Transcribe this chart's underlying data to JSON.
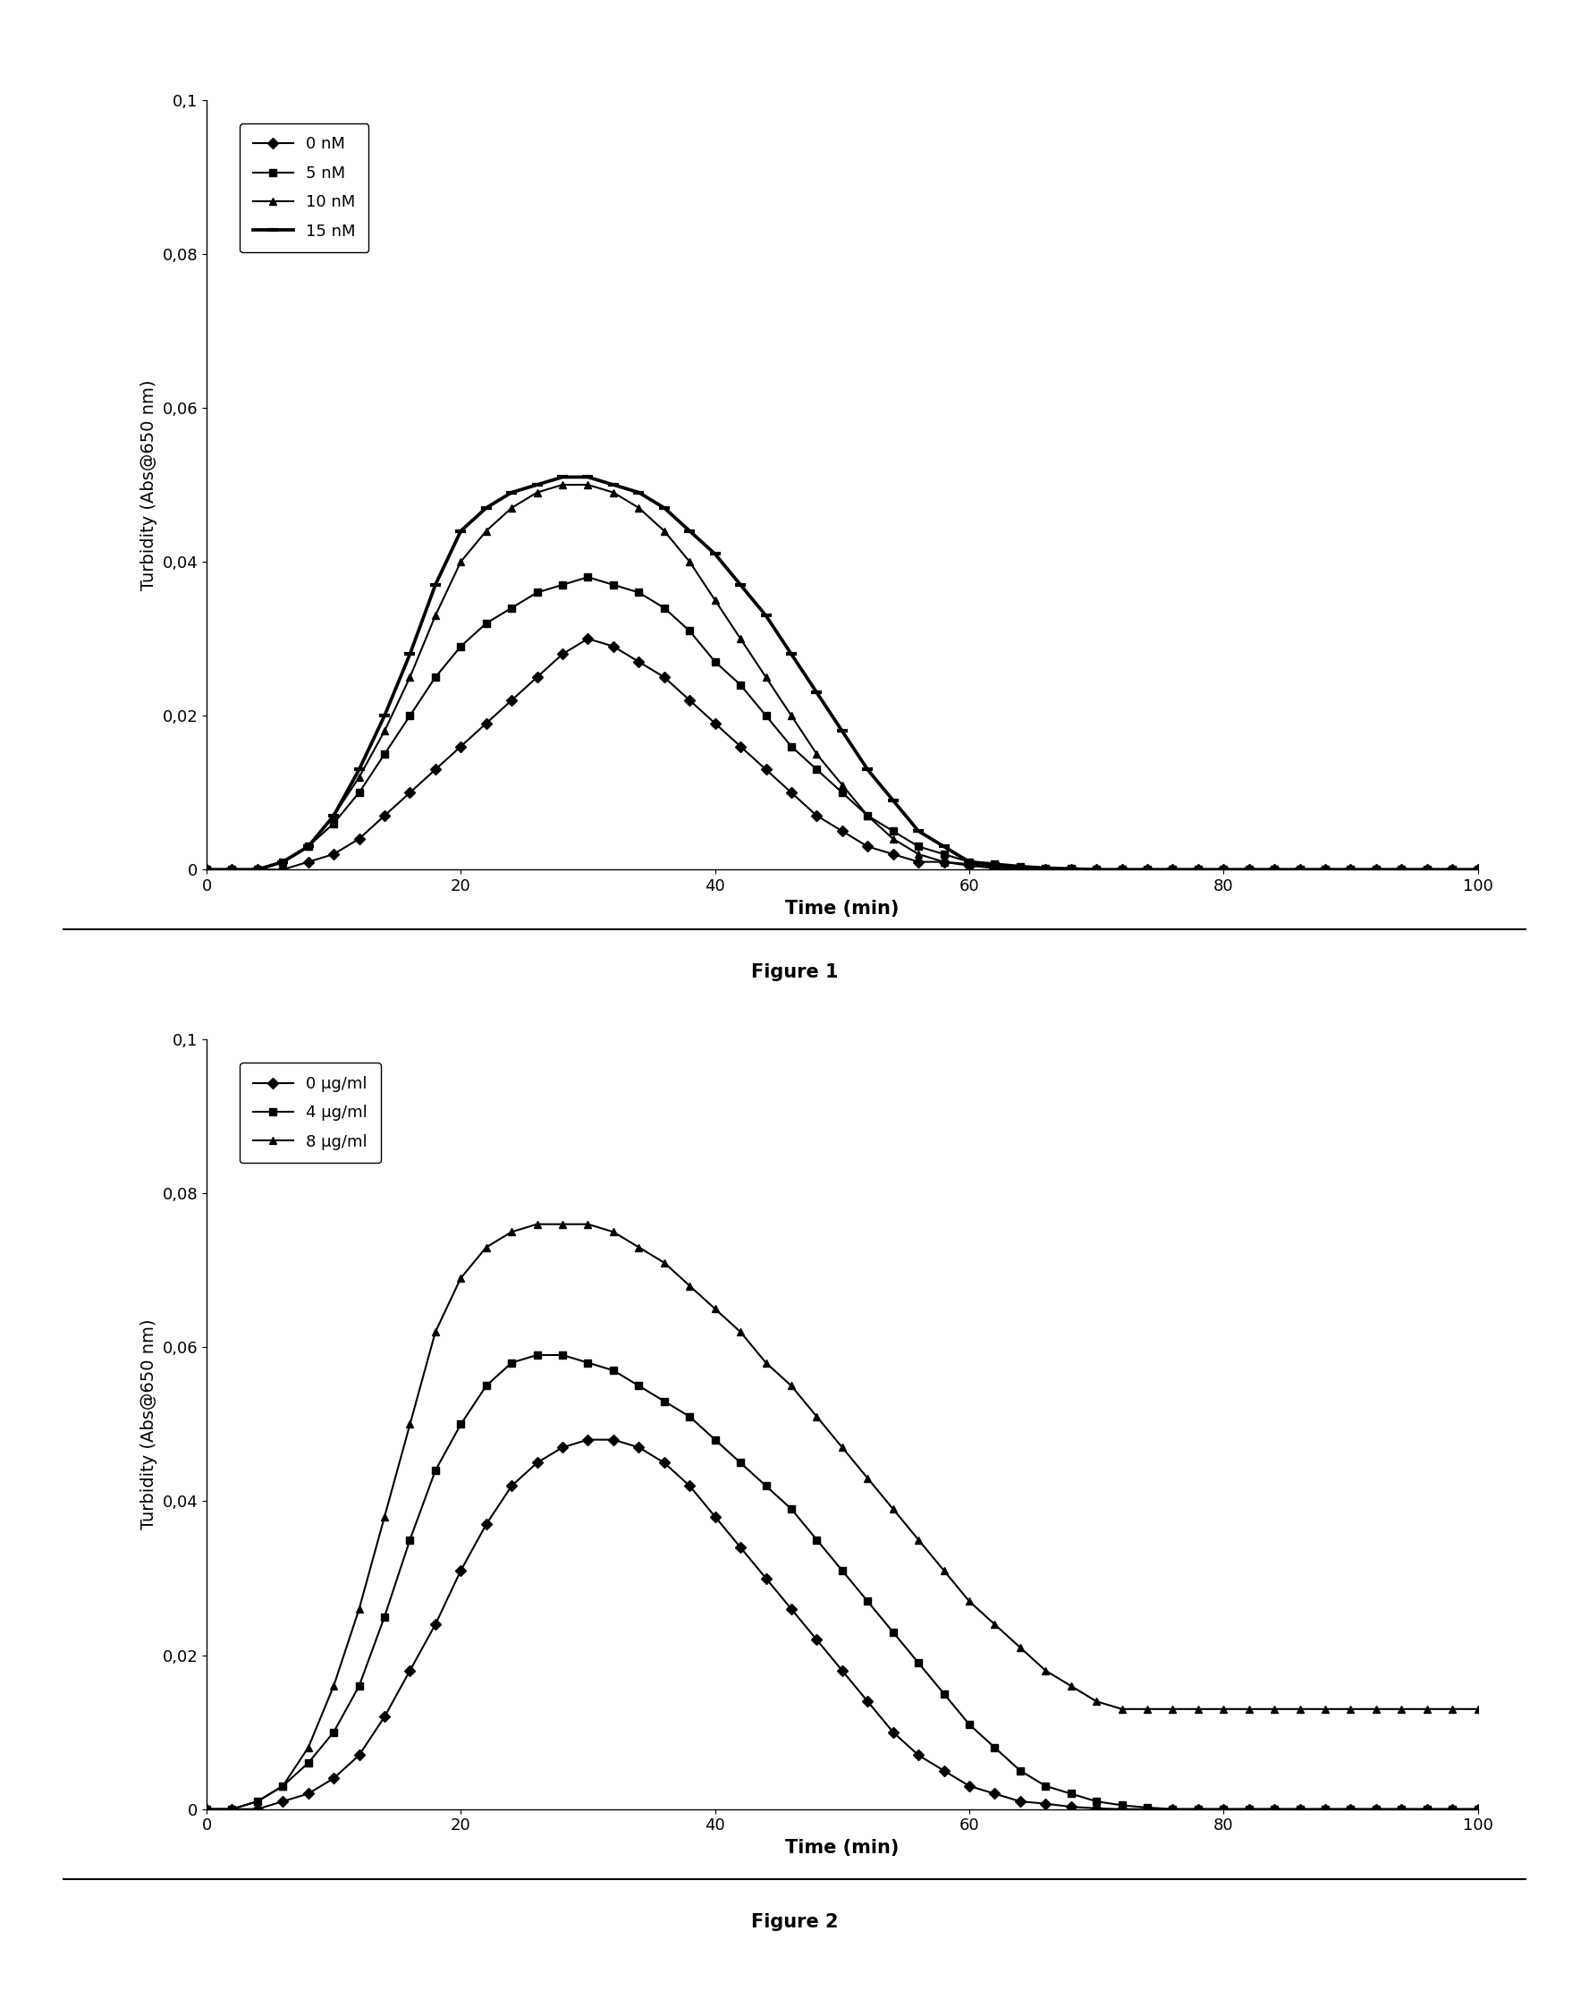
{
  "fig1": {
    "title": "Figure 1",
    "ylabel": "Turbidity (Abs@650 nm)",
    "xlabel": "Time (min)",
    "xlim": [
      0,
      100
    ],
    "ylim": [
      0,
      0.1
    ],
    "yticks": [
      0,
      0.02,
      0.04,
      0.06,
      0.08,
      0.1
    ],
    "ytick_labels": [
      "0",
      "0,02",
      "0,04",
      "0,06",
      "0,08",
      "0,1"
    ],
    "xticks": [
      0,
      20,
      40,
      60,
      80,
      100
    ],
    "series": [
      {
        "label": "0 nM",
        "marker": "D",
        "x": [
          0,
          2,
          4,
          6,
          8,
          10,
          12,
          14,
          16,
          18,
          20,
          22,
          24,
          26,
          28,
          30,
          32,
          34,
          36,
          38,
          40,
          42,
          44,
          46,
          48,
          50,
          52,
          54,
          56,
          58,
          60,
          62,
          64,
          66,
          68,
          70,
          72,
          74,
          76,
          78,
          80,
          82,
          84,
          86,
          88,
          90,
          92,
          94,
          96,
          98,
          100
        ],
        "y": [
          0,
          0,
          0,
          0,
          0.001,
          0.002,
          0.004,
          0.007,
          0.01,
          0.013,
          0.016,
          0.019,
          0.022,
          0.025,
          0.028,
          0.03,
          0.029,
          0.027,
          0.025,
          0.022,
          0.019,
          0.016,
          0.013,
          0.01,
          0.007,
          0.005,
          0.003,
          0.002,
          0.001,
          0.001,
          0.0005,
          0.0002,
          0.0001,
          0,
          0,
          0,
          0,
          0,
          0,
          0,
          0,
          0,
          0,
          0,
          0,
          0,
          0,
          0,
          0,
          0,
          0
        ]
      },
      {
        "label": "5 nM",
        "marker": "s",
        "x": [
          0,
          2,
          4,
          6,
          8,
          10,
          12,
          14,
          16,
          18,
          20,
          22,
          24,
          26,
          28,
          30,
          32,
          34,
          36,
          38,
          40,
          42,
          44,
          46,
          48,
          50,
          52,
          54,
          56,
          58,
          60,
          62,
          64,
          66,
          68,
          70,
          72,
          74,
          76,
          78,
          80,
          82,
          84,
          86,
          88,
          90,
          92,
          94,
          96,
          98,
          100
        ],
        "y": [
          0,
          0,
          0,
          0.001,
          0.003,
          0.006,
          0.01,
          0.015,
          0.02,
          0.025,
          0.029,
          0.032,
          0.034,
          0.036,
          0.037,
          0.038,
          0.037,
          0.036,
          0.034,
          0.031,
          0.027,
          0.024,
          0.02,
          0.016,
          0.013,
          0.01,
          0.007,
          0.005,
          0.003,
          0.002,
          0.001,
          0.0007,
          0.0004,
          0.0002,
          0.0001,
          0,
          0,
          0,
          0,
          0,
          0,
          0,
          0,
          0,
          0,
          0,
          0,
          0,
          0,
          0,
          0
        ]
      },
      {
        "label": "10 nM",
        "marker": "^",
        "x": [
          0,
          2,
          4,
          6,
          8,
          10,
          12,
          14,
          16,
          18,
          20,
          22,
          24,
          26,
          28,
          30,
          32,
          34,
          36,
          38,
          40,
          42,
          44,
          46,
          48,
          50,
          52,
          54,
          56,
          58,
          60,
          62,
          64,
          66,
          68,
          70,
          72,
          74,
          76,
          78,
          80,
          82,
          84,
          86,
          88,
          90,
          92,
          94,
          96,
          98,
          100
        ],
        "y": [
          0,
          0,
          0,
          0.001,
          0.003,
          0.007,
          0.012,
          0.018,
          0.025,
          0.033,
          0.04,
          0.044,
          0.047,
          0.049,
          0.05,
          0.05,
          0.049,
          0.047,
          0.044,
          0.04,
          0.035,
          0.03,
          0.025,
          0.02,
          0.015,
          0.011,
          0.007,
          0.004,
          0.002,
          0.001,
          0.0007,
          0.0004,
          0.0002,
          0.0001,
          0,
          0,
          0,
          0,
          0,
          0,
          0,
          0,
          0,
          0,
          0,
          0,
          0,
          0,
          0,
          0,
          0
        ]
      },
      {
        "label": "15 nM",
        "marker": "_",
        "x": [
          0,
          2,
          4,
          6,
          8,
          10,
          12,
          14,
          16,
          18,
          20,
          22,
          24,
          26,
          28,
          30,
          32,
          34,
          36,
          38,
          40,
          42,
          44,
          46,
          48,
          50,
          52,
          54,
          56,
          58,
          60,
          62,
          64,
          66,
          68,
          70,
          72,
          74,
          76,
          78,
          80,
          82,
          84,
          86,
          88,
          90,
          92,
          94,
          96,
          98,
          100
        ],
        "y": [
          0,
          0,
          0,
          0.001,
          0.003,
          0.007,
          0.013,
          0.02,
          0.028,
          0.037,
          0.044,
          0.047,
          0.049,
          0.05,
          0.051,
          0.051,
          0.05,
          0.049,
          0.047,
          0.044,
          0.041,
          0.037,
          0.033,
          0.028,
          0.023,
          0.018,
          0.013,
          0.009,
          0.005,
          0.003,
          0.001,
          0.0007,
          0.0004,
          0.0002,
          0.0001,
          0,
          0,
          0,
          0,
          0,
          0,
          0,
          0,
          0,
          0,
          0,
          0,
          0,
          0,
          0,
          0
        ]
      }
    ]
  },
  "fig2": {
    "title": "Figure 2",
    "ylabel": "Turbidity (Abs@650 nm)",
    "xlabel": "Time (min)",
    "xlim": [
      0,
      100
    ],
    "ylim": [
      0,
      0.1
    ],
    "yticks": [
      0,
      0.02,
      0.04,
      0.06,
      0.08,
      0.1
    ],
    "ytick_labels": [
      "0",
      "0,02",
      "0,04",
      "0,06",
      "0,08",
      "0,1"
    ],
    "xticks": [
      0,
      20,
      40,
      60,
      80,
      100
    ],
    "series": [
      {
        "label": "0 μg/ml",
        "marker": "D",
        "x": [
          0,
          2,
          4,
          6,
          8,
          10,
          12,
          14,
          16,
          18,
          20,
          22,
          24,
          26,
          28,
          30,
          32,
          34,
          36,
          38,
          40,
          42,
          44,
          46,
          48,
          50,
          52,
          54,
          56,
          58,
          60,
          62,
          64,
          66,
          68,
          70,
          72,
          74,
          76,
          78,
          80,
          82,
          84,
          86,
          88,
          90,
          92,
          94,
          96,
          98,
          100
        ],
        "y": [
          0,
          0,
          0,
          0.001,
          0.002,
          0.004,
          0.007,
          0.012,
          0.018,
          0.024,
          0.031,
          0.037,
          0.042,
          0.045,
          0.047,
          0.048,
          0.048,
          0.047,
          0.045,
          0.042,
          0.038,
          0.034,
          0.03,
          0.026,
          0.022,
          0.018,
          0.014,
          0.01,
          0.007,
          0.005,
          0.003,
          0.002,
          0.001,
          0.0007,
          0.0003,
          0.0001,
          0,
          0,
          0,
          0,
          0,
          0,
          0,
          0,
          0,
          0,
          0,
          0,
          0,
          0,
          0
        ]
      },
      {
        "label": "4 μg/ml",
        "marker": "s",
        "x": [
          0,
          2,
          4,
          6,
          8,
          10,
          12,
          14,
          16,
          18,
          20,
          22,
          24,
          26,
          28,
          30,
          32,
          34,
          36,
          38,
          40,
          42,
          44,
          46,
          48,
          50,
          52,
          54,
          56,
          58,
          60,
          62,
          64,
          66,
          68,
          70,
          72,
          74,
          76,
          78,
          80,
          82,
          84,
          86,
          88,
          90,
          92,
          94,
          96,
          98,
          100
        ],
        "y": [
          0,
          0,
          0.001,
          0.003,
          0.006,
          0.01,
          0.016,
          0.025,
          0.035,
          0.044,
          0.05,
          0.055,
          0.058,
          0.059,
          0.059,
          0.058,
          0.057,
          0.055,
          0.053,
          0.051,
          0.048,
          0.045,
          0.042,
          0.039,
          0.035,
          0.031,
          0.027,
          0.023,
          0.019,
          0.015,
          0.011,
          0.008,
          0.005,
          0.003,
          0.002,
          0.001,
          0.0005,
          0.0002,
          0,
          0,
          0,
          0,
          0,
          0,
          0,
          0,
          0,
          0,
          0,
          0,
          0
        ]
      },
      {
        "label": "8 μg/ml",
        "marker": "^",
        "x": [
          0,
          2,
          4,
          6,
          8,
          10,
          12,
          14,
          16,
          18,
          20,
          22,
          24,
          26,
          28,
          30,
          32,
          34,
          36,
          38,
          40,
          42,
          44,
          46,
          48,
          50,
          52,
          54,
          56,
          58,
          60,
          62,
          64,
          66,
          68,
          70,
          72,
          74,
          76,
          78,
          80,
          82,
          84,
          86,
          88,
          90,
          92,
          94,
          96,
          98,
          100
        ],
        "y": [
          0,
          0,
          0.001,
          0.003,
          0.008,
          0.016,
          0.026,
          0.038,
          0.05,
          0.062,
          0.069,
          0.073,
          0.075,
          0.076,
          0.076,
          0.076,
          0.075,
          0.073,
          0.071,
          0.068,
          0.065,
          0.062,
          0.058,
          0.055,
          0.051,
          0.047,
          0.043,
          0.039,
          0.035,
          0.031,
          0.027,
          0.024,
          0.021,
          0.018,
          0.016,
          0.014,
          0.013,
          0.013,
          0.013,
          0.013,
          0.013,
          0.013,
          0.013,
          0.013,
          0.013,
          0.013,
          0.013,
          0.013,
          0.013,
          0.013,
          0.013
        ]
      }
    ]
  },
  "line_color": "#000000",
  "marker_size": 6,
  "marker_color": "#000000",
  "linewidth": 1.5,
  "fontsize_ylabel": 14,
  "fontsize_xlabel": 15,
  "fontsize_ticks": 13,
  "fontsize_legend": 13,
  "fontsize_caption": 15,
  "background_color": "#ffffff"
}
